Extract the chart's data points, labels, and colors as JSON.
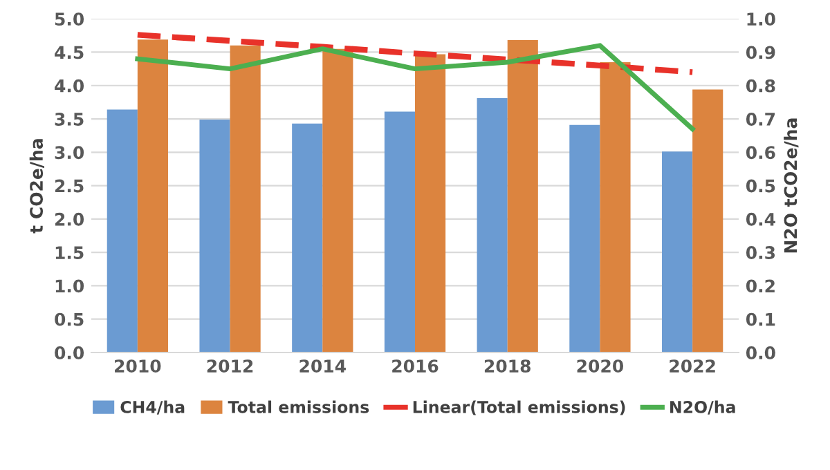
{
  "chart_data": {
    "type": "bar",
    "ylabel": "t CO2e/ha",
    "y2label": "N2O tCO2e/ha",
    "categories": [
      "2010",
      "2012",
      "2014",
      "2016",
      "2018",
      "2020",
      "2022"
    ],
    "series": [
      {
        "name": "CH4/ha",
        "color": "#6b9bd2",
        "values": [
          3.64,
          3.49,
          3.43,
          3.61,
          3.81,
          3.41,
          3.01
        ]
      },
      {
        "name": "Total emissions",
        "color": "#dc843f",
        "values": [
          4.69,
          4.6,
          4.55,
          4.47,
          4.68,
          4.35,
          3.94
        ]
      },
      {
        "name": "Linear(Total emissions)",
        "type": "line",
        "line_style": "dashed",
        "color": "#e8322a",
        "values": [
          4.76,
          4.67,
          4.58,
          4.48,
          4.39,
          4.3,
          4.2
        ]
      },
      {
        "name": "N2O/ha",
        "type": "line",
        "axis": "y2",
        "color": "#4caf50",
        "values": [
          0.88,
          0.85,
          0.91,
          0.85,
          0.87,
          0.92,
          0.67
        ]
      }
    ],
    "ylim": [
      0,
      5
    ],
    "yticks": [
      {
        "value": 0,
        "label": "0.0"
      },
      {
        "value": 0.5,
        "label": "0.5"
      },
      {
        "value": 1,
        "label": "1.0"
      },
      {
        "value": 1.5,
        "label": "1.5"
      },
      {
        "value": 2,
        "label": "2.0"
      },
      {
        "value": 2.5,
        "label": "2.5"
      },
      {
        "value": 3,
        "label": "3.0"
      },
      {
        "value": 3.5,
        "label": "3.5"
      },
      {
        "value": 4,
        "label": "4.0"
      },
      {
        "value": 4.5,
        "label": "4.5"
      },
      {
        "value": 5,
        "label": "5.0"
      }
    ],
    "y2lim": [
      0,
      1
    ],
    "y2ticks": [
      {
        "value": 0,
        "label": "0.0"
      },
      {
        "value": 0.1,
        "label": "0.1"
      },
      {
        "value": 0.2,
        "label": "0.2"
      },
      {
        "value": 0.3,
        "label": "0.3"
      },
      {
        "value": 0.4,
        "label": "0.4"
      },
      {
        "value": 0.5,
        "label": "0.5"
      },
      {
        "value": 0.6,
        "label": "0.6"
      },
      {
        "value": 0.7,
        "label": "0.7"
      },
      {
        "value": 0.8,
        "label": "0.8"
      },
      {
        "value": 0.9,
        "label": "0.9"
      },
      {
        "value": 1,
        "label": "1.0"
      }
    ],
    "grid": "y",
    "legend": "bottom"
  }
}
